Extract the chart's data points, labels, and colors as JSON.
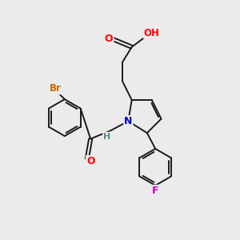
{
  "background_color": "#ebebeb",
  "bond_color": "#1a1a1a",
  "atom_colors": {
    "O": "#ff0000",
    "N": "#0000cc",
    "Br": "#cc6600",
    "F": "#cc00cc",
    "H": "#4a9090",
    "C": "#1a1a1a"
  },
  "figsize": [
    3.0,
    3.0
  ],
  "dpi": 100
}
